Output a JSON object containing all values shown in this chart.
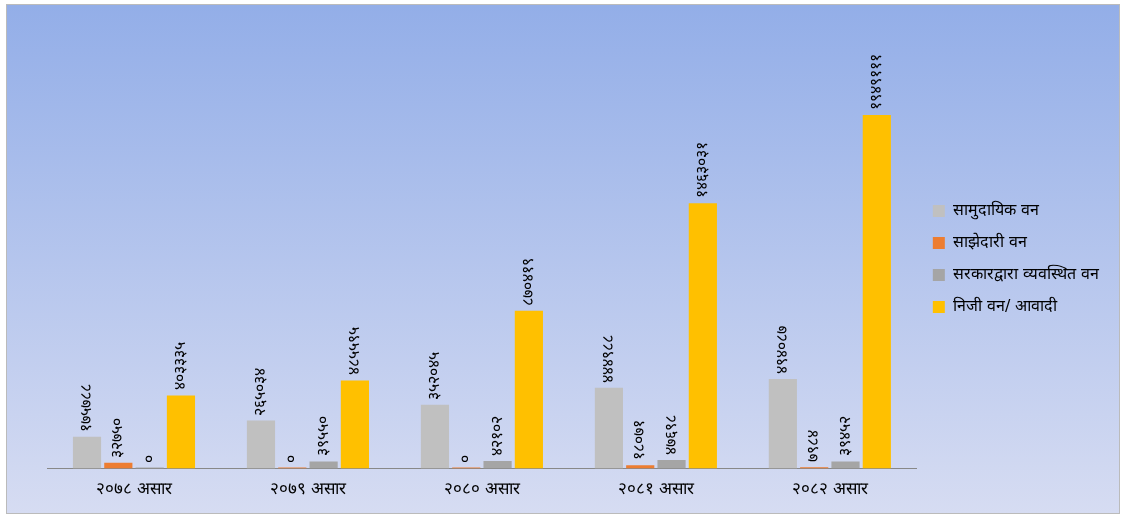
{
  "chart_data": {
    "type": "bar",
    "categories": [
      "२०७८ असार",
      "२०७९ असार",
      "२०८० असार",
      "२०८१ असार",
      "२०८२ असार"
    ],
    "series": [
      {
        "name": "सामुदायिक वन",
        "color": "#c0c0c0",
        "values": [
          175788,
          265034,
          352045,
          444988,
          494087
        ],
        "value_labels": [
          "१७५७८८",
          "२६५०३४",
          "३५२०४५",
          "४४४९८८",
          "४९४०८७"
        ]
      },
      {
        "name": "साझेदारी वन",
        "color": "#ed7d31",
        "values": [
          32750,
          0,
          0,
          18071,
          7984
        ],
        "value_labels": [
          "३२७५०",
          "०",
          "०",
          "१८०७१",
          "७९८४"
        ]
      },
      {
        "name": "सरकारद्वारा व्यवस्थित वन",
        "color": "#a5a5a5",
        "values": [
          0,
          39550,
          42102,
          47698,
          39452
        ],
        "value_labels": [
          "०",
          "३९५५०",
          "४२१०२",
          "४७६९८",
          "३९४५२"
        ]
      },
      {
        "name": "निजी वन/ आवादी",
        "color": "#ffc000",
        "values": [
          403335,
          485595,
          870419,
          1463031,
          1949111
        ],
        "value_labels": [
          "४०३३३५",
          "४८५५९५",
          "८७०४१९",
          "१४६३०३१",
          "१९४९१११"
        ]
      }
    ],
    "legend": "right",
    "grid": false
  }
}
